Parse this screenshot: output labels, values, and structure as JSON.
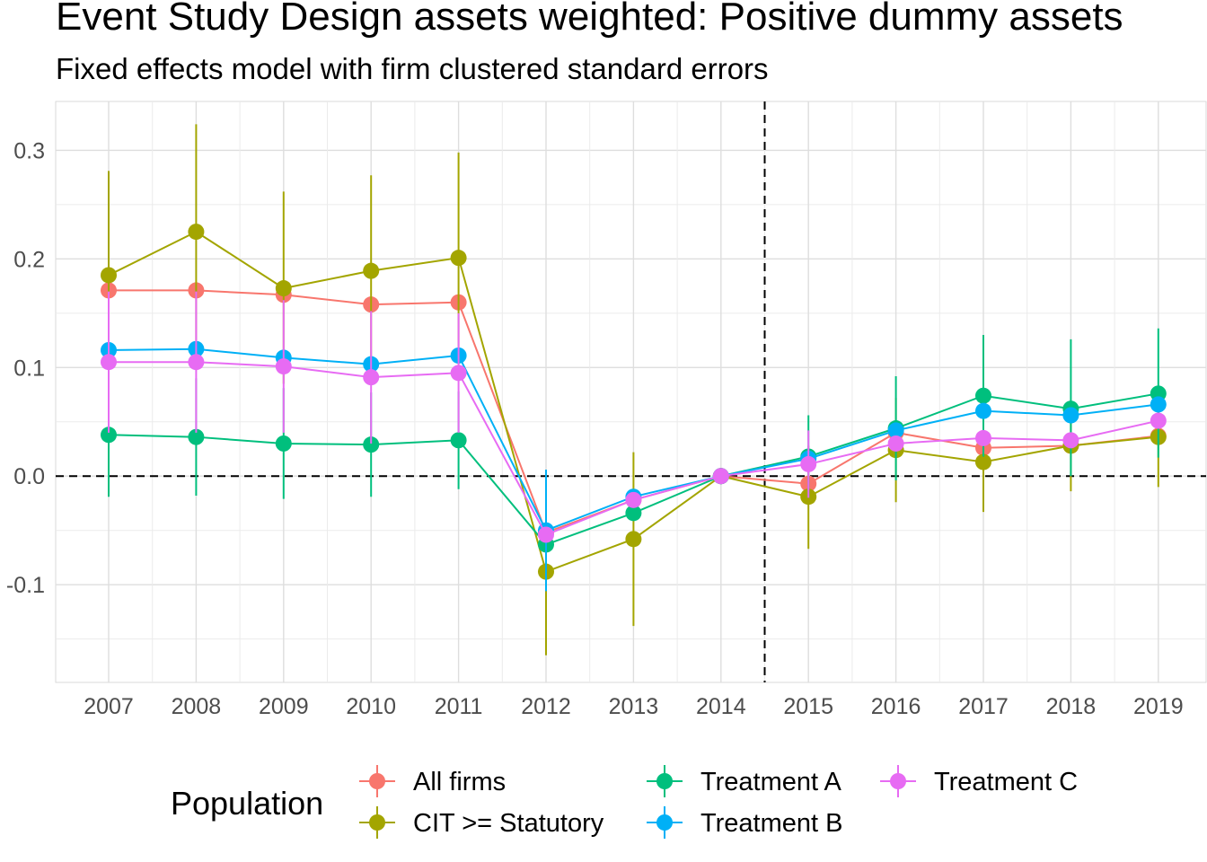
{
  "chart_data": {
    "type": "line",
    "title": "Event Study Design assets weighted: Positive dummy assets",
    "subtitle": "Fixed effects model with firm clustered standard errors",
    "xlabel": "",
    "ylabel": "",
    "categories": [
      "2007",
      "2008",
      "2009",
      "2010",
      "2011",
      "2012",
      "2013",
      "2014",
      "2015",
      "2016",
      "2017",
      "2018",
      "2019"
    ],
    "y_ticks": [
      -0.1,
      0.0,
      0.1,
      0.2,
      0.3
    ],
    "y_tick_labels": [
      "-0.1",
      "0.0",
      "0.1",
      "0.2",
      "0.3"
    ],
    "ylim": [
      -0.19,
      0.345
    ],
    "reference_lines": {
      "horizontal_y": 0.0,
      "vertical_between": [
        "2014",
        "2015"
      ]
    },
    "grid": true,
    "legend": {
      "title": "Population",
      "position": "bottom"
    },
    "series": [
      {
        "name": "All firms",
        "color": "#F8766D",
        "values": [
          0.171,
          0.171,
          0.167,
          0.158,
          0.16,
          -0.052,
          -0.022,
          0.0,
          -0.007,
          0.04,
          0.026,
          0.028,
          0.037
        ],
        "lower": [
          0.171,
          0.171,
          0.167,
          0.158,
          0.16,
          -0.052,
          -0.022,
          0.0,
          -0.007,
          0.04,
          0.026,
          0.028,
          0.037
        ],
        "upper": [
          0.171,
          0.171,
          0.167,
          0.158,
          0.16,
          -0.052,
          -0.022,
          0.0,
          -0.007,
          0.04,
          0.026,
          0.028,
          0.037
        ]
      },
      {
        "name": "CIT >= Statutory",
        "color": "#A3A500",
        "values": [
          0.185,
          0.225,
          0.173,
          0.189,
          0.201,
          -0.088,
          -0.058,
          0.0,
          -0.019,
          0.024,
          0.013,
          0.028,
          0.036
        ],
        "lower": [
          0.088,
          0.125,
          0.085,
          0.1,
          0.103,
          -0.165,
          -0.138,
          0.0,
          -0.067,
          -0.024,
          -0.033,
          -0.014,
          -0.01
        ],
        "upper": [
          0.281,
          0.324,
          0.262,
          0.277,
          0.298,
          -0.01,
          0.022,
          0.0,
          0.028,
          0.072,
          0.059,
          0.07,
          0.082
        ]
      },
      {
        "name": "Treatment A",
        "color": "#00BF7D",
        "values": [
          0.038,
          0.036,
          0.03,
          0.029,
          0.033,
          -0.063,
          -0.034,
          0.0,
          0.018,
          0.044,
          0.074,
          0.062,
          0.076
        ],
        "lower": [
          -0.019,
          -0.018,
          -0.021,
          -0.019,
          -0.012,
          -0.063,
          -0.034,
          0.0,
          -0.02,
          -0.004,
          0.018,
          0.0,
          0.017
        ],
        "upper": [
          0.095,
          0.09,
          0.081,
          0.077,
          0.078,
          -0.063,
          -0.034,
          0.0,
          0.056,
          0.092,
          0.13,
          0.126,
          0.136
        ]
      },
      {
        "name": "Treatment B",
        "color": "#00B0F6",
        "values": [
          0.116,
          0.117,
          0.109,
          0.103,
          0.111,
          -0.05,
          -0.019,
          0.0,
          0.016,
          0.042,
          0.06,
          0.056,
          0.066
        ],
        "lower": [
          0.116,
          0.117,
          0.109,
          0.103,
          0.111,
          -0.106,
          -0.019,
          0.0,
          0.016,
          0.042,
          0.06,
          0.056,
          0.066
        ],
        "upper": [
          0.116,
          0.117,
          0.109,
          0.103,
          0.111,
          0.006,
          -0.019,
          0.0,
          0.016,
          0.042,
          0.06,
          0.056,
          0.066
        ]
      },
      {
        "name": "Treatment C",
        "color": "#E76BF3",
        "values": [
          0.105,
          0.105,
          0.101,
          0.091,
          0.095,
          -0.054,
          -0.022,
          0.0,
          0.011,
          0.03,
          0.035,
          0.033,
          0.051
        ],
        "lower": [
          0.04,
          0.04,
          0.04,
          0.03,
          0.04,
          -0.054,
          -0.022,
          0.0,
          -0.02,
          0.03,
          0.035,
          0.033,
          0.051
        ],
        "upper": [
          0.17,
          0.17,
          0.162,
          0.152,
          0.15,
          -0.054,
          -0.022,
          0.0,
          0.042,
          0.03,
          0.035,
          0.033,
          0.051
        ]
      }
    ]
  }
}
